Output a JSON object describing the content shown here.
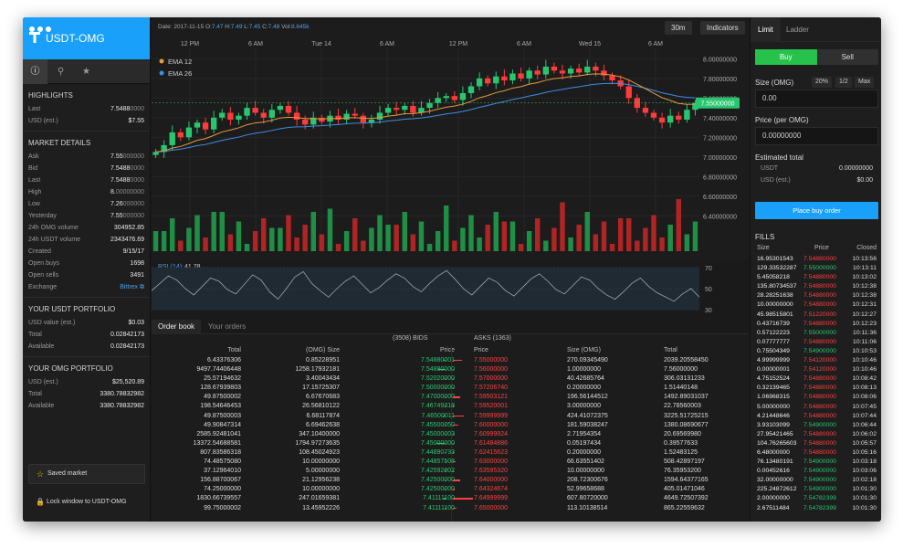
{
  "brand": {
    "title": "USDT-OMG"
  },
  "sidebar": {
    "tabs": [
      {
        "icon": "info-icon"
      },
      {
        "icon": "search-icon"
      },
      {
        "icon": "star-icon"
      }
    ],
    "highlights": {
      "title": "HIGHLIGHTS",
      "rows": [
        {
          "k": "Last",
          "v": "7.5488",
          "vd": "0000"
        },
        {
          "k": "USD (est.)",
          "v": "$7.55",
          "vd": ""
        }
      ]
    },
    "market": {
      "title": "MARKET DETAILS",
      "rows": [
        {
          "k": "Ask",
          "v": "7.55",
          "vd": "000000"
        },
        {
          "k": "Bid",
          "v": "7.5488",
          "vd": "0000"
        },
        {
          "k": "Last",
          "v": "7.5488",
          "vd": "0000"
        },
        {
          "k": "High",
          "v": "8.",
          "vd": "00000000"
        },
        {
          "k": "Low",
          "v": "7.26",
          "vd": "000000"
        },
        {
          "k": "Yesterday",
          "v": "7.55",
          "vd": "000000"
        },
        {
          "k": "24h OMG volume",
          "v": "304952.85",
          "vd": ""
        },
        {
          "k": "24h USDT volume",
          "v": "2343476.69",
          "vd": ""
        },
        {
          "k": "Created",
          "v": "9/15/17",
          "vd": ""
        },
        {
          "k": "Open buys",
          "v": "1698",
          "vd": ""
        },
        {
          "k": "Open sells",
          "v": "3491",
          "vd": ""
        },
        {
          "k": "Exchange",
          "v": "Bittrex",
          "vd": ""
        }
      ]
    },
    "usdt": {
      "title": "YOUR USDT PORTFOLIO",
      "rows": [
        {
          "k": "USD value (est.)",
          "v": "$0.03"
        },
        {
          "k": "Total",
          "v": "0.02842173"
        },
        {
          "k": "Available",
          "v": "0.02842173"
        }
      ]
    },
    "omg": {
      "title": "YOUR OMG PORTFOLIO",
      "rows": [
        {
          "k": "USD (est.)",
          "v": "$25,520.89"
        },
        {
          "k": "Total",
          "v": "3380.78832982"
        },
        {
          "k": "Available",
          "v": "3380.78832982"
        }
      ]
    },
    "saved_label": "Saved market",
    "lock_label": "Lock window to USDT-OMG"
  },
  "chart_header": {
    "date_label": "Date:",
    "date": "2017-11-15",
    "o_label": "O:",
    "o": "7.47",
    "h_label": "H:",
    "h": "7.49",
    "l_label": "L:",
    "l": "7.45",
    "c_label": "C:",
    "c": "7.48",
    "vol_label": "Vol:",
    "vol": "8.645k",
    "interval": "30m",
    "indicators": "Indicators"
  },
  "chart_data": {
    "type": "candlestick",
    "x_ticks": [
      "12 PM",
      "6 AM",
      "Tue 14",
      "6 AM",
      "12 PM",
      "6 AM",
      "Wed 15",
      "6 AM"
    ],
    "y_ticks": [
      "8.00000000",
      "7.80000000",
      "7.60000000",
      "7.40000000",
      "7.20000000",
      "7.00000000",
      "6.80000000",
      "6.60000000",
      "6.40000000"
    ],
    "ylim": [
      6.3,
      8.05
    ],
    "legend": [
      {
        "name": "EMA 12",
        "color": "#e69a3c"
      },
      {
        "name": "EMA 26",
        "color": "#3d8fe6"
      }
    ],
    "current_price": "7.55000000",
    "close": [
      7.05,
      7.12,
      7.25,
      7.2,
      7.3,
      7.35,
      7.28,
      7.4,
      7.45,
      7.38,
      7.42,
      7.5,
      7.45,
      7.4,
      7.48,
      7.52,
      7.45,
      7.38,
      7.33,
      7.4,
      7.36,
      7.42,
      7.38,
      7.44,
      7.42,
      7.35,
      7.38,
      7.45,
      7.5,
      7.48,
      7.52,
      7.45,
      7.5,
      7.55,
      7.6,
      7.62,
      7.58,
      7.65,
      7.72,
      7.8,
      7.75,
      7.82,
      7.78,
      7.85,
      7.8,
      7.88,
      7.84,
      7.92,
      7.88,
      7.85,
      7.9,
      7.86,
      7.92,
      7.88,
      7.83,
      7.78,
      7.72,
      7.6,
      7.5,
      7.45,
      7.4,
      7.35,
      7.42,
      7.38,
      7.48,
      7.55
    ],
    "rsi_label": "RSI (14):",
    "rsi_value": "41.78",
    "rsi_levels": [
      "70",
      "50",
      "30"
    ],
    "rsi": [
      48,
      55,
      62,
      58,
      50,
      44,
      52,
      60,
      57,
      49,
      45,
      54,
      63,
      58,
      47,
      40,
      50,
      61,
      66,
      55,
      48,
      42,
      50,
      57,
      62,
      54,
      46,
      51,
      58,
      64,
      60,
      52,
      47,
      55,
      62,
      67,
      59,
      50,
      44,
      52,
      60,
      56,
      48,
      43,
      51,
      59,
      64,
      57,
      49,
      45,
      53,
      61,
      58,
      50,
      44,
      40,
      47,
      55,
      60,
      52,
      46,
      42,
      38,
      45,
      50,
      42
    ]
  },
  "orderbook": {
    "tabs": [
      "Order book",
      "Your orders"
    ],
    "bids_title": "(3508) BIDS",
    "asks_title": "ASKS (1363)",
    "heads": {
      "total": "Total",
      "size": "(OMG) Size",
      "price": "Price",
      "price_a": "Price",
      "size_a": "Size (OMG)",
      "total_a": "Total"
    },
    "bids": [
      [
        "6.43376306",
        "0.85228951",
        "7.54880001"
      ],
      [
        "9497.74406448",
        "1258.17932181",
        "7.54880000"
      ],
      [
        "25.57194632",
        "3.40043434",
        "7.52020000"
      ],
      [
        "128.67939803",
        "17.15725307",
        "7.50000000"
      ],
      [
        "49.87500002",
        "6.67670683",
        "7.47000000"
      ],
      [
        "198.54646453",
        "26.56810122",
        "7.46749318"
      ],
      [
        "49.87500003",
        "6.68117874",
        "7.46500011"
      ],
      [
        "49.90847314",
        "6.69462638",
        "7.45500050"
      ],
      [
        "2585.92481041",
        "347.10400000",
        "7.45000003"
      ],
      [
        "13372.54688581",
        "1794.97273635",
        "7.45000000"
      ],
      [
        "807.83586318",
        "108.45024923",
        "7.44890733"
      ],
      [
        "74.48575080",
        "10.00000000",
        "7.44857508"
      ],
      [
        "37.12964010",
        "5.00000000",
        "7.42592802"
      ],
      [
        "156.88700067",
        "21.12956238",
        "7.42500000"
      ],
      [
        "74.25000000",
        "10.00000000",
        "7.42500000"
      ],
      [
        "1830.66739557",
        "247.01659381",
        "7.41111100"
      ],
      [
        "99.75000002",
        "13.45952226",
        "7.41111100"
      ]
    ],
    "asks": [
      [
        "7.55000000",
        "270.09345490",
        "2039.20558450"
      ],
      [
        "7.56000000",
        "1.00000000",
        "7.56000000"
      ],
      [
        "7.57000000",
        "40.42685764",
        "306.03131233"
      ],
      [
        "7.57206740",
        "0.20000000",
        "1.51440148"
      ],
      [
        "7.59503121",
        "196.56144512",
        "1492.89031037"
      ],
      [
        "7.59520001",
        "3.00000000",
        "22.78560003"
      ],
      [
        "7.59999999",
        "424.41072375",
        "3225.51725215"
      ],
      [
        "7.60000000",
        "181.59038247",
        "1380.08690677"
      ],
      [
        "7.60999924",
        "2.71954354",
        "20.69569980"
      ],
      [
        "7.61484886",
        "0.05197434",
        "0.39577633"
      ],
      [
        "7.62415623",
        "0.20000000",
        "1.52483125"
      ],
      [
        "7.63000000",
        "66.63551402",
        "508.42897197"
      ],
      [
        "7.63595320",
        "10.00000000",
        "76.35953200"
      ],
      [
        "7.64000000",
        "208.72300676",
        "1594.64377165"
      ],
      [
        "7.64324674",
        "52.99658688",
        "405.01471046"
      ],
      [
        "7.64999999",
        "607.80720000",
        "4649.72507392"
      ],
      [
        "7.65000000",
        "113.10138514",
        "865.22559632"
      ]
    ]
  },
  "order_form": {
    "tabs": [
      "Limit",
      "Ladder"
    ],
    "buy": "Buy",
    "sell": "Sell",
    "size_label": "Size (OMG)",
    "pct": [
      "20%",
      "1/2",
      "Max"
    ],
    "size_value": "0.00",
    "price_label": "Price (per OMG)",
    "price_value": "0.00000000",
    "est_title": "Estimated total",
    "est_usdt_label": "USDT",
    "est_usdt_value": "0.00000000",
    "est_usd_label": "USD (est.)",
    "est_usd_value": "$0.00",
    "place": "Place buy order"
  },
  "fills": {
    "title": "FILLS",
    "heads": {
      "size": "Size",
      "price": "Price",
      "closed": "Closed"
    },
    "rows": [
      [
        "16.95301543",
        "7.54880000",
        "10:13:56",
        "r"
      ],
      [
        "129.33532287",
        "7.55000000",
        "10:13:11",
        "g"
      ],
      [
        "5.45058218",
        "7.54880000",
        "10:13:02",
        "r"
      ],
      [
        "135.80734537",
        "7.54880000",
        "10:12:38",
        "r"
      ],
      [
        "28.28251638",
        "7.54880000",
        "10:12:38",
        "r"
      ],
      [
        "10.00000000",
        "7.54880000",
        "10:12:31",
        "r"
      ],
      [
        "45.98515801",
        "7.51220000",
        "10:12:27",
        "r"
      ],
      [
        "0.43716739",
        "7.54880000",
        "10:12:23",
        "r"
      ],
      [
        "0.57122223",
        "7.55000000",
        "10:11:36",
        "g"
      ],
      [
        "0.07777777",
        "7.54880000",
        "10:11:06",
        "r"
      ],
      [
        "0.75504349",
        "7.54900000",
        "10:10:53",
        "g"
      ],
      [
        "4.99999999",
        "7.54120000",
        "10:10:46",
        "r"
      ],
      [
        "0.00000001",
        "7.54120000",
        "10:10:46",
        "r"
      ],
      [
        "4.75152524",
        "7.54880000",
        "10:08:42",
        "r"
      ],
      [
        "0.32139465",
        "7.54880000",
        "10:08:13",
        "r"
      ],
      [
        "1.06968315",
        "7.54880000",
        "10:08:06",
        "r"
      ],
      [
        "5.00000000",
        "7.54880000",
        "10:07:45",
        "r"
      ],
      [
        "4.21448646",
        "7.54880000",
        "10:07:44",
        "r"
      ],
      [
        "3.93103099",
        "7.54900000",
        "10:06:44",
        "g"
      ],
      [
        "27.95421465",
        "7.54880000",
        "10:06:02",
        "r"
      ],
      [
        "104.76265603",
        "7.54880000",
        "10:05:57",
        "r"
      ],
      [
        "6.48000000",
        "7.54880000",
        "10:05:16",
        "r"
      ],
      [
        "76.13480191",
        "7.54900000",
        "10:03:18",
        "g"
      ],
      [
        "0.00452616",
        "7.54900000",
        "10:03:06",
        "g"
      ],
      [
        "32.00000000",
        "7.54900000",
        "10:02:18",
        "g"
      ],
      [
        "225.24872612",
        "7.54900000",
        "10:01:30",
        "g"
      ],
      [
        "2.00000000",
        "7.54782399",
        "10:01:30",
        "g"
      ],
      [
        "2.67511484",
        "7.54782399",
        "10:01:30",
        "g"
      ]
    ]
  }
}
